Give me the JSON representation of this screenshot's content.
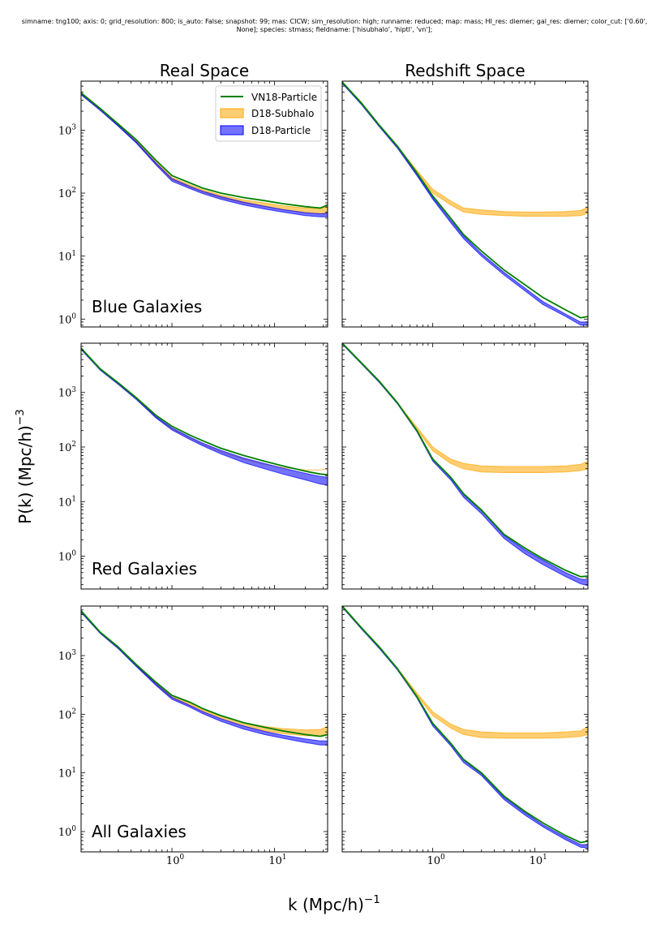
{
  "figure": {
    "title": "simname: tng100; axis: 0; grid_resolution: 800; is_auto: False; snapshot: 99; mas: CICW; sim_resolution: high; runname: reduced; map: mass; HI_res: diemer; gal_res: diemer; color_cut: ['0.60',\nNone]; species: stmass; fieldname: ['hisubhalo', 'hiptl', 'vn'];",
    "column_titles": [
      "Real Space",
      "Redshift Space"
    ],
    "row_labels": [
      "Blue Galaxies",
      "Red Galaxies",
      "All Galaxies"
    ],
    "xlabel": "k (Mpc/h)",
    "xlabel_exp": "−1",
    "ylabel": "P(k) (Mpc/h)",
    "ylabel_exp": "−3",
    "xtick_labels": [
      "10",
      "10"
    ],
    "xtick_exps": [
      "0",
      "1"
    ],
    "ytick_labels": [
      "10",
      "10",
      "10",
      "10"
    ],
    "ytick_exps": [
      "0",
      "1",
      "2",
      "3"
    ],
    "legend": {
      "placement": "upper-right of top-left panel",
      "entries": [
        "VN18-Particle",
        "D18-Subhalo",
        "D18-Particle"
      ]
    },
    "colors": {
      "vn18": "#008000",
      "subhalo": "#ffa500",
      "particle": "#0000ff"
    }
  },
  "chart_data": [
    {
      "type": "line",
      "panel": "Real Space / Blue Galaxies",
      "xscale": "log",
      "yscale": "log",
      "xlim": [
        0.13,
        33
      ],
      "ylim": [
        0.75,
        6000
      ],
      "x": [
        0.13,
        0.2,
        0.3,
        0.45,
        0.7,
        1.0,
        1.5,
        2.0,
        3.0,
        5.0,
        8.0,
        12.0,
        20.0,
        28.0,
        33.0
      ],
      "series": [
        {
          "name": "VN18-Particle",
          "kind": "line",
          "values": [
            3900,
            2200,
            1250,
            700,
            330,
            190,
            145,
            120,
            100,
            85,
            76,
            68,
            61,
            58,
            65
          ]
        },
        {
          "name": "D18-Subhalo",
          "kind": "band",
          "lower": [
            3700,
            2100,
            1170,
            640,
            290,
            165,
            125,
            105,
            85,
            70,
            62,
            55,
            49,
            47,
            47
          ],
          "upper": [
            3800,
            2150,
            1210,
            670,
            310,
            178,
            135,
            113,
            93,
            78,
            70,
            63,
            58,
            57,
            62
          ]
        },
        {
          "name": "D18-Particle",
          "kind": "band",
          "lower": [
            3650,
            2050,
            1150,
            620,
            280,
            155,
            118,
            98,
            80,
            65,
            56,
            50,
            44,
            42,
            42
          ],
          "upper": [
            3750,
            2100,
            1190,
            650,
            300,
            170,
            128,
            107,
            88,
            72,
            62,
            55,
            49,
            47,
            48
          ]
        }
      ]
    },
    {
      "type": "line",
      "panel": "Redshift Space / Blue Galaxies",
      "xscale": "log",
      "yscale": "log",
      "xlim": [
        0.13,
        33
      ],
      "ylim": [
        0.75,
        6000
      ],
      "x": [
        0.13,
        0.2,
        0.3,
        0.45,
        0.7,
        1.0,
        1.5,
        2.0,
        3.0,
        5.0,
        8.0,
        12.0,
        20.0,
        28.0,
        33.0
      ],
      "series": [
        {
          "name": "VN18-Particle",
          "kind": "line",
          "values": [
            5800,
            2700,
            1200,
            560,
            210,
            90,
            40,
            22,
            12,
            6,
            3.5,
            2.2,
            1.4,
            1.05,
            1.1
          ]
        },
        {
          "name": "D18-Subhalo",
          "kind": "band",
          "lower": [
            5600,
            2600,
            1150,
            540,
            210,
            100,
            65,
            50,
            46,
            44,
            43,
            43,
            43,
            44,
            48
          ],
          "upper": [
            5700,
            2650,
            1180,
            560,
            230,
            115,
            75,
            58,
            54,
            51,
            50,
            50,
            51,
            53,
            60
          ]
        },
        {
          "name": "D18-Particle",
          "kind": "band",
          "lower": [
            5500,
            2550,
            1130,
            520,
            190,
            80,
            34,
            19,
            10,
            5,
            2.8,
            1.7,
            1.1,
            0.8,
            0.8
          ],
          "upper": [
            5650,
            2620,
            1160,
            540,
            200,
            85,
            37,
            21,
            11,
            5.5,
            3.1,
            1.9,
            1.2,
            0.9,
            0.9
          ]
        }
      ]
    },
    {
      "type": "line",
      "panel": "Real Space / Red Galaxies",
      "xscale": "log",
      "yscale": "log",
      "xlim": [
        0.13,
        33
      ],
      "ylim": [
        0.25,
        8000
      ],
      "x": [
        0.13,
        0.2,
        0.3,
        0.45,
        0.7,
        1.0,
        1.5,
        2.0,
        3.0,
        5.0,
        8.0,
        12.0,
        20.0,
        28.0,
        33.0
      ],
      "series": [
        {
          "name": "VN18-Particle",
          "kind": "line",
          "values": [
            6500,
            2700,
            1500,
            800,
            380,
            240,
            165,
            130,
            95,
            70,
            55,
            45,
            36,
            32,
            31
          ]
        },
        {
          "name": "D18-Subhalo",
          "kind": "band",
          "lower": [
            6200,
            2600,
            1430,
            760,
            350,
            215,
            145,
            112,
            82,
            60,
            48,
            42,
            38,
            38,
            40
          ]
        },
        {
          "name": "D18-Particle",
          "kind": "band",
          "lower": [
            6100,
            2550,
            1400,
            740,
            340,
            205,
            137,
            105,
            75,
            52,
            40,
            32,
            25,
            21,
            20
          ],
          "upper": [
            6300,
            2650,
            1460,
            780,
            360,
            225,
            152,
            118,
            87,
            63,
            50,
            41,
            33,
            29,
            28
          ]
        }
      ]
    },
    {
      "type": "line",
      "panel": "Redshift Space / Red Galaxies",
      "xscale": "log",
      "yscale": "log",
      "xlim": [
        0.13,
        33
      ],
      "ylim": [
        0.25,
        8000
      ],
      "x": [
        0.13,
        0.2,
        0.3,
        0.45,
        0.7,
        1.0,
        1.5,
        2.0,
        3.0,
        5.0,
        8.0,
        12.0,
        20.0,
        28.0,
        33.0
      ],
      "series": [
        {
          "name": "VN18-Particle",
          "kind": "line",
          "values": [
            8000,
            3500,
            1600,
            650,
            200,
            60,
            28,
            14,
            7,
            2.5,
            1.4,
            0.9,
            0.55,
            0.42,
            0.43
          ]
        },
        {
          "name": "D18-Subhalo",
          "kind": "band",
          "lower": [
            7800,
            3400,
            1550,
            630,
            210,
            85,
            50,
            40,
            35,
            34,
            34,
            34,
            35,
            37,
            40
          ],
          "upper": [
            7950,
            3450,
            1580,
            650,
            230,
            100,
            60,
            50,
            45,
            44,
            44,
            44,
            45,
            48,
            55
          ]
        },
        {
          "name": "D18-Particle",
          "kind": "band",
          "lower": [
            7700,
            3350,
            1520,
            620,
            190,
            55,
            25,
            12,
            6,
            2.1,
            1.1,
            0.7,
            0.42,
            0.31,
            0.29
          ],
          "upper": [
            7900,
            3450,
            1570,
            640,
            200,
            60,
            27,
            13.5,
            6.8,
            2.4,
            1.3,
            0.85,
            0.5,
            0.38,
            0.37
          ]
        }
      ]
    },
    {
      "type": "line",
      "panel": "Real Space / All Galaxies",
      "xscale": "log",
      "yscale": "log",
      "xlim": [
        0.13,
        33
      ],
      "ylim": [
        0.45,
        7000
      ],
      "x": [
        0.13,
        0.2,
        0.3,
        0.45,
        0.7,
        1.0,
        1.5,
        2.0,
        3.0,
        5.0,
        8.0,
        12.0,
        20.0,
        28.0,
        33.0
      ],
      "series": [
        {
          "name": "VN18-Particle",
          "kind": "line",
          "values": [
            5800,
            2500,
            1400,
            700,
            350,
            210,
            160,
            125,
            95,
            72,
            60,
            52,
            45,
            42,
            45
          ]
        },
        {
          "name": "D18-Subhalo",
          "kind": "band",
          "lower": [
            5500,
            2400,
            1330,
            660,
            320,
            190,
            140,
            110,
            84,
            63,
            52,
            47,
            43,
            43,
            45
          ],
          "upper": [
            5650,
            2450,
            1370,
            690,
            340,
            205,
            152,
            120,
            92,
            72,
            62,
            57,
            54,
            55,
            62
          ]
        },
        {
          "name": "D18-Particle",
          "kind": "band",
          "lower": [
            5450,
            2380,
            1310,
            650,
            310,
            180,
            132,
            102,
            76,
            56,
            45,
            39,
            33,
            30,
            30
          ],
          "upper": [
            5600,
            2430,
            1350,
            675,
            330,
            195,
            142,
            111,
            84,
            63,
            51,
            44,
            38,
            35,
            35
          ]
        }
      ]
    },
    {
      "type": "line",
      "panel": "Redshift Space / All Galaxies",
      "xscale": "log",
      "yscale": "log",
      "xlim": [
        0.13,
        33
      ],
      "ylim": [
        0.45,
        7000
      ],
      "x": [
        0.13,
        0.2,
        0.3,
        0.45,
        0.7,
        1.0,
        1.5,
        2.0,
        3.0,
        5.0,
        8.0,
        12.0,
        20.0,
        28.0,
        33.0
      ],
      "series": [
        {
          "name": "VN18-Particle",
          "kind": "line",
          "values": [
            7000,
            3000,
            1400,
            600,
            200,
            70,
            32,
            17,
            10,
            4,
            2.2,
            1.4,
            0.85,
            0.65,
            0.68
          ]
        },
        {
          "name": "D18-Subhalo",
          "kind": "band",
          "lower": [
            6800,
            2900,
            1350,
            590,
            210,
            95,
            58,
            45,
            40,
            39,
            39,
            39,
            40,
            42,
            45
          ],
          "upper": [
            6950,
            2950,
            1380,
            610,
            230,
            110,
            68,
            55,
            50,
            48,
            48,
            48,
            50,
            52,
            62
          ]
        },
        {
          "name": "D18-Particle",
          "kind": "band",
          "lower": [
            6700,
            2850,
            1320,
            570,
            190,
            63,
            29,
            15,
            9,
            3.5,
            1.9,
            1.2,
            0.72,
            0.54,
            0.52
          ],
          "upper": [
            6900,
            2950,
            1370,
            590,
            200,
            68,
            31,
            16.5,
            9.6,
            3.8,
            2.1,
            1.3,
            0.8,
            0.6,
            0.6
          ]
        }
      ]
    }
  ]
}
